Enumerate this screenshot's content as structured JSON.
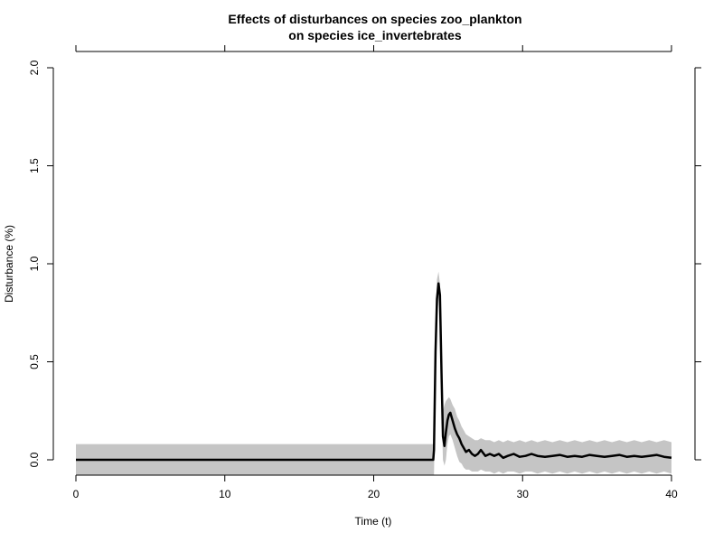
{
  "chart_data": {
    "type": "line",
    "title_line1": "Effects of disturbances on species zoo_plankton",
    "title_line2": "on species ice_invertebrates",
    "xlabel": "Time (t)",
    "ylabel": "Disturbance (%)",
    "xlim": [
      0,
      40
    ],
    "ylim": [
      0,
      2.0
    ],
    "x_ticks": [
      "0",
      "10",
      "20",
      "30",
      "40"
    ],
    "y_ticks": [
      "0.0",
      "0.5",
      "1.0",
      "1.5",
      "2.0"
    ],
    "grid": false,
    "colors": {
      "line": "#000000",
      "band": "#c5c5c5",
      "axis": "#000000"
    },
    "series": [
      {
        "x": [
          0,
          23.9,
          24.0,
          24.05,
          24.15,
          24.25,
          24.35,
          24.45,
          24.55,
          24.65,
          24.75,
          24.85,
          24.95,
          25.05,
          25.15,
          25.3,
          25.45,
          25.6,
          25.75,
          25.9,
          26.05,
          26.2,
          26.4,
          26.6,
          26.8,
          27.0,
          27.2,
          27.5,
          27.8,
          28.1,
          28.4,
          28.7,
          29.0,
          29.4,
          29.8,
          30.2,
          30.6,
          31.0,
          31.5,
          32.0,
          32.5,
          33.0,
          33.5,
          34.0,
          34.5,
          35.0,
          35.5,
          36.0,
          36.5,
          37.0,
          37.5,
          38.0,
          38.5,
          39.0,
          39.5,
          40.0
        ],
        "y": [
          0,
          0,
          0,
          0.05,
          0.55,
          0.82,
          0.9,
          0.84,
          0.45,
          0.12,
          0.07,
          0.14,
          0.2,
          0.23,
          0.24,
          0.2,
          0.16,
          0.13,
          0.11,
          0.08,
          0.06,
          0.04,
          0.05,
          0.03,
          0.02,
          0.03,
          0.05,
          0.02,
          0.03,
          0.02,
          0.03,
          0.01,
          0.02,
          0.03,
          0.015,
          0.02,
          0.03,
          0.02,
          0.015,
          0.02,
          0.025,
          0.015,
          0.02,
          0.015,
          0.025,
          0.02,
          0.015,
          0.02,
          0.025,
          0.015,
          0.02,
          0.015,
          0.02,
          0.025,
          0.015,
          0.01
        ],
        "upper": [
          0.08,
          0.08,
          0.08,
          0.2,
          0.7,
          0.92,
          0.96,
          0.9,
          0.6,
          0.25,
          0.28,
          0.3,
          0.31,
          0.32,
          0.31,
          0.28,
          0.26,
          0.22,
          0.2,
          0.17,
          0.15,
          0.13,
          0.12,
          0.11,
          0.1,
          0.1,
          0.11,
          0.1,
          0.1,
          0.09,
          0.1,
          0.09,
          0.1,
          0.09,
          0.1,
          0.09,
          0.1,
          0.09,
          0.1,
          0.09,
          0.1,
          0.09,
          0.1,
          0.09,
          0.1,
          0.09,
          0.1,
          0.09,
          0.1,
          0.09,
          0.1,
          0.09,
          0.1,
          0.09,
          0.1,
          0.09
        ],
        "lower": [
          -0.08,
          -0.08,
          -0.08,
          -0.08,
          0.4,
          0.7,
          0.82,
          0.75,
          0.3,
          0.0,
          -0.03,
          0.0,
          0.08,
          0.12,
          0.13,
          0.1,
          0.06,
          0.02,
          -0.01,
          -0.02,
          -0.04,
          -0.05,
          -0.05,
          -0.06,
          -0.06,
          -0.06,
          -0.05,
          -0.06,
          -0.06,
          -0.07,
          -0.06,
          -0.07,
          -0.06,
          -0.06,
          -0.07,
          -0.06,
          -0.06,
          -0.07,
          -0.06,
          -0.07,
          -0.06,
          -0.07,
          -0.06,
          -0.07,
          -0.06,
          -0.07,
          -0.06,
          -0.07,
          -0.06,
          -0.07,
          -0.06,
          -0.07,
          -0.06,
          -0.07,
          -0.06,
          -0.07
        ]
      }
    ]
  }
}
